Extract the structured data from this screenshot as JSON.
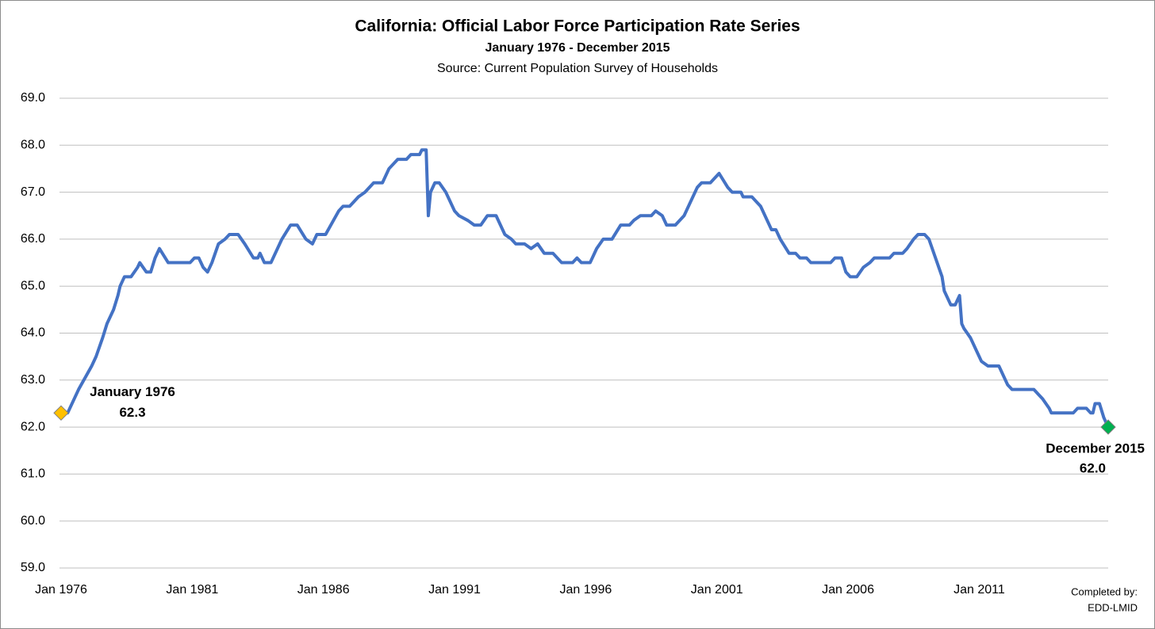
{
  "chart_data": {
    "type": "line",
    "title": "California: Official Labor Force Participation Rate Series",
    "subtitle": "January 1976 - December 2015",
    "source": "Source: Current Population Survey of Households",
    "x": [
      "Jan 1976",
      "Apr 1976",
      "Sep 1976",
      "Mar 1977",
      "May 1977",
      "Aug 1977",
      "Oct 1977",
      "Jan 1978",
      "Mar 1978",
      "Apr 1978",
      "Jun 1978",
      "Sep 1978",
      "Dec 1978",
      "Jan 1979",
      "Apr 1979",
      "Jun 1979",
      "Aug 1979",
      "Oct 1979",
      "Feb 1980",
      "Dec 1980",
      "Feb 1981",
      "Apr 1981",
      "Jun 1981",
      "Aug 1981",
      "Oct 1981",
      "Jan 1982",
      "Apr 1982",
      "Jun 1982",
      "Oct 1982",
      "Jan 1983",
      "May 1983",
      "Jul 1983",
      "Aug 1983",
      "Oct 1983",
      "Jan 1984",
      "Jun 1984",
      "Oct 1984",
      "Jan 1985",
      "May 1985",
      "Aug 1985",
      "Oct 1985",
      "Feb 1986",
      "Aug 1986",
      "Oct 1986",
      "Jan 1987",
      "Mar 1987",
      "May 1987",
      "Aug 1987",
      "Dec 1987",
      "Apr 1988",
      "Jul 1988",
      "Nov 1988",
      "Mar 1989",
      "May 1989",
      "Sep 1989",
      "Oct 1989",
      "Dec 1989",
      "Jan 1990",
      "Feb 1990",
      "Apr 1990",
      "Jun 1990",
      "Sep 1990",
      "Jan 1991",
      "Mar 1991",
      "Jul 1991",
      "Oct 1991",
      "Jan 1992",
      "Apr 1992",
      "Aug 1992",
      "Dec 1992",
      "Mar 1993",
      "May 1993",
      "Sep 1993",
      "Dec 1993",
      "Mar 1994",
      "Jun 1994",
      "Oct 1994",
      "Feb 1995",
      "Jul 1995",
      "Sep 1995",
      "Nov 1995",
      "Mar 1996",
      "Jun 1996",
      "Sep 1996",
      "Jan 1997",
      "May 1997",
      "Sep 1997",
      "Nov 1997",
      "Feb 1998",
      "Jul 1998",
      "Sep 1998",
      "Dec 1998",
      "Feb 1999",
      "Jun 1999",
      "Oct 1999",
      "Jan 2000",
      "Apr 2000",
      "Jun 2000",
      "Oct 2000",
      "Feb 2001",
      "Jun 2001",
      "Aug 2001",
      "Dec 2001",
      "Jan 2002",
      "May 2002",
      "Sep 2002",
      "Feb 2003",
      "Apr 2003",
      "Jun 2003",
      "Oct 2003",
      "Jan 2004",
      "Mar 2004",
      "Jun 2004",
      "Aug 2004",
      "May 2005",
      "Jul 2005",
      "Oct 2005",
      "Dec 2005",
      "Feb 2006",
      "May 2006",
      "Aug 2006",
      "Nov 2006",
      "Jan 2007",
      "Aug 2007",
      "Oct 2007",
      "Feb 2008",
      "Apr 2008",
      "Jul 2008",
      "Sep 2008",
      "Dec 2008",
      "Feb 2009",
      "May 2009",
      "Aug 2009",
      "Sep 2009",
      "Dec 2009",
      "Feb 2010",
      "Mar 2010",
      "Apr 2010",
      "May 2010",
      "Jun 2010",
      "Sep 2010",
      "Dec 2010",
      "Feb 2011",
      "May 2011",
      "Oct 2011",
      "Dec 2011",
      "Feb 2012",
      "Apr 2012",
      "Feb 2013",
      "Apr 2013",
      "Jun 2013",
      "Sep 2013",
      "Oct 2013",
      "Aug 2014",
      "Oct 2014",
      "Feb 2015",
      "Apr 2015",
      "May 2015",
      "Jun 2015",
      "Aug 2015",
      "Oct 2015",
      "Dec 2015"
    ],
    "series": [
      {
        "color": "#4472c4",
        "values": [
          62.3,
          62.3,
          62.8,
          63.3,
          63.5,
          63.9,
          64.2,
          64.5,
          64.8,
          65.0,
          65.2,
          65.2,
          65.4,
          65.5,
          65.3,
          65.3,
          65.6,
          65.8,
          65.5,
          65.5,
          65.6,
          65.6,
          65.4,
          65.3,
          65.5,
          65.9,
          66.0,
          66.1,
          66.1,
          65.9,
          65.6,
          65.6,
          65.7,
          65.5,
          65.5,
          66.0,
          66.3,
          66.3,
          66.0,
          65.9,
          66.1,
          66.1,
          66.6,
          66.7,
          66.7,
          66.8,
          66.9,
          67.0,
          67.2,
          67.2,
          67.5,
          67.7,
          67.7,
          67.8,
          67.8,
          67.9,
          67.9,
          66.5,
          67.0,
          67.2,
          67.2,
          67.0,
          66.6,
          66.5,
          66.4,
          66.3,
          66.3,
          66.5,
          66.5,
          66.1,
          66.0,
          65.9,
          65.9,
          65.8,
          65.9,
          65.7,
          65.7,
          65.5,
          65.5,
          65.6,
          65.5,
          65.5,
          65.8,
          66.0,
          66.0,
          66.3,
          66.3,
          66.4,
          66.5,
          66.5,
          66.6,
          66.5,
          66.3,
          66.3,
          66.5,
          66.8,
          67.1,
          67.2,
          67.2,
          67.4,
          67.1,
          67.0,
          67.0,
          66.9,
          66.9,
          66.7,
          66.2,
          66.2,
          66.0,
          65.7,
          65.7,
          65.6,
          65.6,
          65.5,
          65.5,
          65.6,
          65.6,
          65.3,
          65.2,
          65.2,
          65.4,
          65.5,
          65.6,
          65.6,
          65.7,
          65.7,
          65.8,
          66.0,
          66.1,
          66.1,
          66.0,
          65.6,
          65.2,
          64.9,
          64.6,
          64.6,
          64.7,
          64.8,
          64.2,
          64.1,
          63.9,
          63.6,
          63.4,
          63.3,
          63.3,
          63.1,
          62.9,
          62.8,
          62.8,
          62.7,
          62.6,
          62.4,
          62.3,
          62.3,
          62.4,
          62.4,
          62.3,
          62.3,
          62.5,
          62.5,
          62.2,
          62.0
        ]
      }
    ],
    "xlim": [
      "Jan 1976",
      "Dec 2015"
    ],
    "xticks": [
      "Jan 1976",
      "Jan 1981",
      "Jan 1986",
      "Jan 1991",
      "Jan 1996",
      "Jan 2001",
      "Jan 2006",
      "Jan 2011"
    ],
    "ylim": [
      59,
      69
    ],
    "yticks": [
      {
        "value": 59,
        "label": "59.0"
      },
      {
        "value": 60,
        "label": "60.0"
      },
      {
        "value": 61,
        "label": "61.0"
      },
      {
        "value": 62,
        "label": "62.0"
      },
      {
        "value": 63,
        "label": "63.0"
      },
      {
        "value": 64,
        "label": "64.0"
      },
      {
        "value": 65,
        "label": "65.0"
      },
      {
        "value": 66,
        "label": "66.0"
      },
      {
        "value": 67,
        "label": "67.0"
      },
      {
        "value": 68,
        "label": "68.0"
      },
      {
        "value": 69,
        "label": "69.0"
      }
    ],
    "grid": true,
    "annotations": [
      {
        "text": "January 1976",
        "value": 62.3,
        "marker_color": "#ffc000"
      },
      {
        "text": "December 2015",
        "value": 62,
        "value_label": "62.0",
        "marker_color": "#00b050"
      }
    ],
    "note": [
      "Completed by:",
      "EDD-LMID"
    ]
  }
}
